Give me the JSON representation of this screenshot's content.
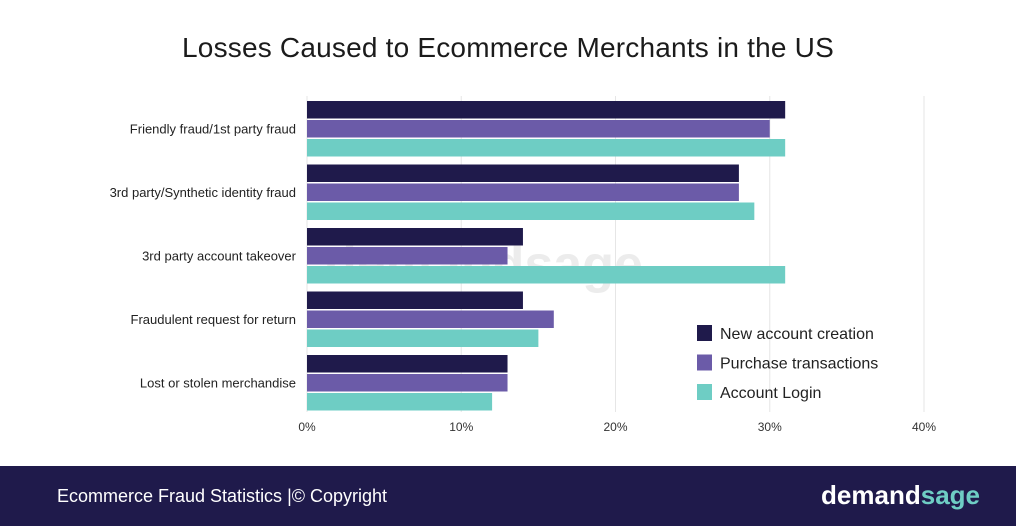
{
  "chart_data": {
    "type": "bar",
    "orientation": "horizontal",
    "title": "Losses Caused to Ecommerce Merchants in the US",
    "categories": [
      "Friendly fraud/1st party fraud",
      "3rd party/Synthetic identity fraud",
      "3rd party account takeover",
      "Fraudulent request for return",
      "Lost or stolen merchandise"
    ],
    "series": [
      {
        "name": "New account creation",
        "color": "#1f1a4b",
        "values": [
          31,
          28,
          14,
          14,
          13
        ]
      },
      {
        "name": "Purchase transactions",
        "color": "#6b5ba8",
        "values": [
          30,
          28,
          13,
          16,
          13
        ]
      },
      {
        "name": "Account Login",
        "color": "#6ecdc4",
        "values": [
          31,
          29,
          31,
          15,
          12
        ]
      }
    ],
    "xlim": [
      0,
      40
    ],
    "ticks": [
      "0%",
      "10%",
      "20%",
      "30%",
      "40%"
    ],
    "tick_values": [
      0,
      10,
      20,
      30,
      40
    ],
    "legend_position": "bottom-right",
    "grid": true
  },
  "watermark": {
    "part1": "demand",
    "part2": "sage"
  },
  "footer": {
    "text": "Ecommerce Fraud Statistics  |© Copyright",
    "brand_part1": "demand",
    "brand_part2": "sage"
  }
}
